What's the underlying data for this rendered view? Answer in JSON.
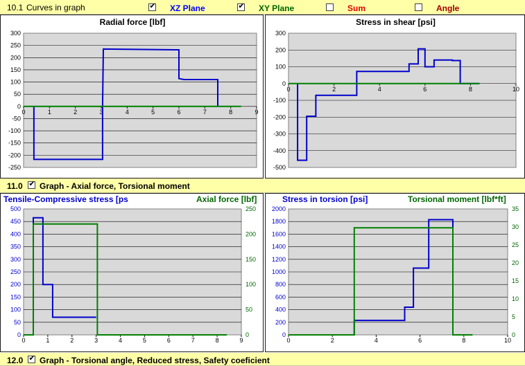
{
  "top_bar": {
    "number": "10.1",
    "label": "Curves in graph",
    "options": [
      {
        "label": "XZ Plane",
        "checked": true,
        "color": "#0000ff"
      },
      {
        "label": "XY Plane",
        "checked": true,
        "color": "#006600"
      },
      {
        "label": "Sum",
        "checked": false,
        "color": "#e00000"
      },
      {
        "label": "Angle",
        "checked": false,
        "color": "#a00000"
      }
    ]
  },
  "section_11": {
    "number": "11.0",
    "checked": true,
    "label": "Graph - Axial force,   Torsional moment"
  },
  "section_12": {
    "number": "12.0",
    "checked": true,
    "label": "Graph - Torsional angle,   Reduced stress,   Safety coeficient"
  },
  "chart_data": [
    {
      "type": "line",
      "title": "Radial force [lbf]",
      "xlim": [
        0,
        9
      ],
      "ylim": [
        -250,
        300
      ],
      "xticks": [
        0,
        1,
        2,
        3,
        4,
        5,
        6,
        7,
        8,
        9
      ],
      "yticks": [
        -250,
        -200,
        -150,
        -100,
        -50,
        0,
        50,
        100,
        150,
        200,
        250,
        300
      ],
      "series": [
        {
          "color": "#0000cc",
          "x": [
            0.4,
            0.4,
            3.05,
            3.05,
            3.08,
            6.0,
            6.0,
            6.2,
            7.5,
            7.5
          ],
          "y": [
            0,
            -217,
            -217,
            0,
            235,
            232,
            114,
            110,
            110,
            0
          ]
        },
        {
          "color": "#008000",
          "x": [
            0,
            8.4
          ],
          "y": [
            0,
            0
          ]
        }
      ]
    },
    {
      "type": "line",
      "title": "Stress in shear [psi]",
      "xlim": [
        0,
        10
      ],
      "ylim": [
        -500,
        300
      ],
      "xticks": [
        0,
        2,
        4,
        6,
        8,
        10
      ],
      "yticks": [
        -500,
        -400,
        -300,
        -200,
        -100,
        0,
        100,
        200,
        300
      ],
      "series": [
        {
          "color": "#0000cc",
          "x": [
            0.4,
            0.4,
            0.8,
            0.8,
            1.2,
            1.2,
            3.0,
            3.0,
            5.3,
            5.3,
            5.7,
            5.7,
            6.0,
            6.0,
            6.4,
            6.4,
            7.2,
            7.2,
            7.55,
            7.55,
            8.4
          ],
          "y": [
            0,
            -457,
            -457,
            -195,
            -195,
            -70,
            -70,
            72,
            72,
            117,
            117,
            207,
            207,
            100,
            100,
            140,
            140,
            137,
            137,
            0,
            0
          ]
        },
        {
          "color": "#008000",
          "x": [
            0,
            8.4
          ],
          "y": [
            0,
            0
          ]
        }
      ]
    },
    {
      "type": "line",
      "title": "Tensile-Compressive stress [ps",
      "title2": "Axial force [lbf]",
      "xlim": [
        0,
        9
      ],
      "ylim": [
        0,
        500
      ],
      "y2lim": [
        0,
        250
      ],
      "xticks": [
        0,
        1,
        2,
        3,
        4,
        5,
        6,
        7,
        8,
        9
      ],
      "yticks": [
        0,
        50,
        100,
        150,
        200,
        250,
        300,
        350,
        400,
        450,
        500
      ],
      "y2ticks": [
        0,
        50,
        100,
        150,
        200,
        250
      ],
      "series": [
        {
          "color": "#0000cc",
          "x": [
            0.4,
            0.4,
            0.8,
            0.8,
            1.2,
            1.2,
            3.0
          ],
          "y": [
            0,
            465,
            465,
            200,
            200,
            70,
            70
          ]
        },
        {
          "color": "#008000",
          "x": [
            0,
            0.4,
            0.4,
            3.05,
            3.05,
            8.4
          ],
          "y": [
            0,
            0,
            440,
            440,
            0,
            0
          ]
        }
      ]
    },
    {
      "type": "line",
      "title": "Stress in torsion [psi]",
      "title2": "Torsional moment [lbf*ft]",
      "xlim": [
        0,
        10
      ],
      "ylim": [
        0,
        2000
      ],
      "y2lim": [
        0,
        35
      ],
      "xticks": [
        0,
        2,
        4,
        6,
        8,
        10
      ],
      "yticks": [
        0,
        200,
        400,
        600,
        800,
        1000,
        1200,
        1400,
        1600,
        1800,
        2000
      ],
      "y2ticks": [
        0,
        5,
        10,
        15,
        20,
        25,
        30,
        35
      ],
      "series": [
        {
          "color": "#0000cc",
          "x": [
            3.0,
            3.0,
            5.3,
            5.3,
            5.7,
            5.7,
            6.4,
            6.4,
            7.5,
            7.5
          ],
          "y": [
            0,
            230,
            230,
            440,
            440,
            1060,
            1060,
            1830,
            1830,
            0
          ]
        },
        {
          "color": "#008000",
          "x": [
            0,
            3.0,
            3.0,
            7.5,
            7.5,
            8.4
          ],
          "y": [
            0,
            0,
            1700,
            1700,
            0,
            0
          ]
        }
      ]
    }
  ]
}
